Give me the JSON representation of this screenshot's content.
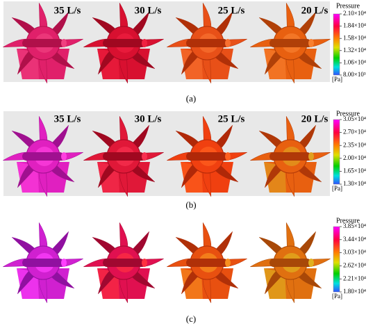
{
  "panels": [
    {
      "labels": [
        "35 L/s",
        "30 L/s",
        "25 L/s",
        "20 L/s"
      ],
      "colorbar": {
        "title": "Pressure",
        "ticks": [
          "2.10×10⁴",
          "1.84×10⁴",
          "1.58×10⁴",
          "1.32×10⁴",
          "1.06×10⁴",
          "8.00×10³"
        ],
        "unit": "[Pa]"
      },
      "caption": "(a)"
    },
    {
      "labels": [
        "35 L/s",
        "30 L/s",
        "25 L/s",
        "20 L/s"
      ],
      "colorbar": {
        "title": "Pressure",
        "ticks": [
          "3.05×10⁴",
          "2.70×10⁴",
          "2.35×10⁴",
          "2.00×10⁴",
          "1.65×10⁴",
          "1.30×10⁴"
        ],
        "unit": "[Pa]"
      },
      "caption": "(b)"
    },
    {
      "colorbar": {
        "title": "Pressure",
        "ticks": [
          "3.85×10⁴",
          "3.44×10⁴",
          "3.03×10⁴",
          "2.62×10⁴",
          "2.21×10⁴",
          "1.80×10⁴"
        ],
        "unit": "[Pa]"
      },
      "caption": "(c)"
    }
  ]
}
